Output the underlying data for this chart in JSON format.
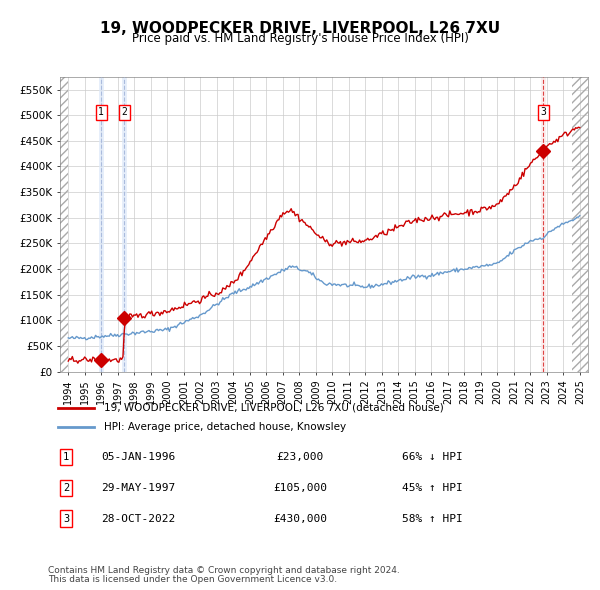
{
  "title": "19, WOODPECKER DRIVE, LIVERPOOL, L26 7XU",
  "subtitle": "Price paid vs. HM Land Registry's House Price Index (HPI)",
  "legend_line1": "19, WOODPECKER DRIVE, LIVERPOOL, L26 7XU (detached house)",
  "legend_line2": "HPI: Average price, detached house, Knowsley",
  "footer1": "Contains HM Land Registry data © Crown copyright and database right 2024.",
  "footer2": "This data is licensed under the Open Government Licence v3.0.",
  "transactions": [
    {
      "num": 1,
      "date": "05-JAN-1996",
      "price": 23000,
      "pct": "66%",
      "dir": "↓",
      "year": 1996.0
    },
    {
      "num": 2,
      "date": "29-MAY-1997",
      "price": 105000,
      "pct": "45%",
      "dir": "↑",
      "year": 1997.4
    },
    {
      "num": 3,
      "date": "28-OCT-2022",
      "price": 430000,
      "pct": "58%",
      "dir": "↑",
      "year": 2022.8
    }
  ],
  "hatch_color": "#c8d8f0",
  "red_color": "#cc0000",
  "blue_color": "#6699cc",
  "grid_color": "#cccccc",
  "shade_color": "#dce8f8",
  "dashed_red": "#dd4444",
  "ylim": [
    0,
    575000
  ],
  "yticks": [
    0,
    50000,
    100000,
    150000,
    200000,
    250000,
    300000,
    350000,
    400000,
    450000,
    500000,
    550000
  ],
  "xlim_start": 1993.5,
  "xlim_end": 2025.5,
  "xticks": [
    1994,
    1995,
    1996,
    1997,
    1998,
    1999,
    2000,
    2001,
    2002,
    2003,
    2004,
    2005,
    2006,
    2007,
    2008,
    2009,
    2010,
    2011,
    2012,
    2013,
    2014,
    2015,
    2016,
    2017,
    2018,
    2019,
    2020,
    2021,
    2022,
    2023,
    2024,
    2025
  ]
}
